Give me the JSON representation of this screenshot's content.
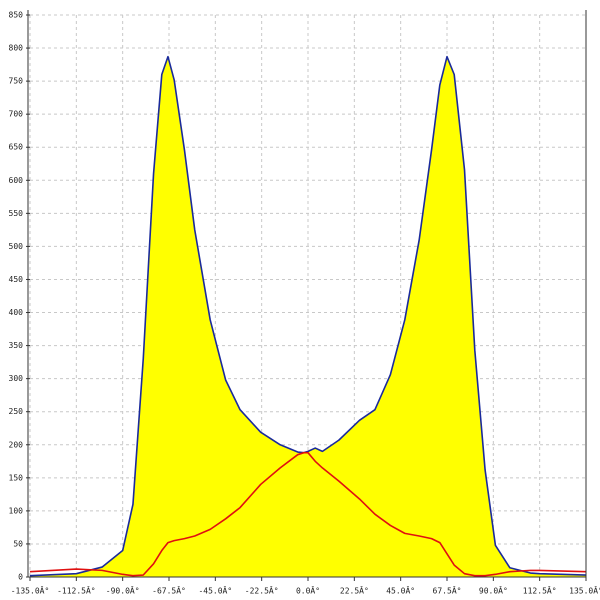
{
  "chart_data": {
    "type": "area",
    "x": [
      -135,
      -112.5,
      -100,
      -90,
      -85,
      -80,
      -75,
      -71,
      -68,
      -65,
      -60,
      -55,
      -47.5,
      -40,
      -33,
      -23,
      -13.5,
      -5,
      -2,
      0,
      3.5,
      7,
      15,
      25,
      32.5,
      40,
      47,
      54,
      60,
      64,
      67.5,
      71,
      76,
      81,
      86,
      91,
      98,
      108,
      112.5,
      135
    ],
    "series": [
      {
        "color": "#1a2a9c",
        "fill": "#ffff00",
        "values": [
          2,
          5,
          15,
          40,
          110,
          330,
          610,
          760,
          787,
          752,
          646,
          525,
          389,
          298,
          253,
          219,
          200,
          189,
          188,
          190,
          195,
          190,
          207,
          237,
          253,
          306,
          389,
          510,
          646,
          744,
          787,
          760,
          616,
          343,
          162,
          48,
          14,
          6,
          5,
          3
        ]
      },
      {
        "color": "#e01010",
        "values": [
          8,
          12,
          10,
          4,
          2,
          3,
          20,
          40,
          52,
          55,
          58,
          62,
          72,
          88,
          105,
          140,
          165,
          185,
          188,
          188,
          175,
          165,
          145,
          118,
          95,
          78,
          66,
          62,
          58,
          52,
          35,
          18,
          5,
          2,
          2,
          4,
          8,
          10,
          10,
          8
        ]
      }
    ],
    "xlim": [
      -135,
      135
    ],
    "xticks": [
      {
        "value": -135,
        "label": "-135.0Â°"
      },
      {
        "value": -112.5,
        "label": "-112.5Â°"
      },
      {
        "value": -90,
        "label": "-90.0Â°"
      },
      {
        "value": -67.5,
        "label": "-67.5Â°"
      },
      {
        "value": -45,
        "label": "-45.0Â°"
      },
      {
        "value": -22.5,
        "label": "-22.5Â°"
      },
      {
        "value": 0,
        "label": "0.0Â°"
      },
      {
        "value": 22.5,
        "label": "22.5Â°"
      },
      {
        "value": 45,
        "label": "45.0Â°"
      },
      {
        "value": 67.5,
        "label": "67.5Â°"
      },
      {
        "value": 90,
        "label": "90.0Â°"
      },
      {
        "value": 112.5,
        "label": "112.5Â°"
      },
      {
        "value": 135,
        "label": "135.0Â°"
      }
    ],
    "ylim": [
      0,
      850
    ],
    "yticks": [
      0,
      50,
      100,
      150,
      200,
      250,
      300,
      350,
      400,
      450,
      500,
      550,
      600,
      650,
      700,
      750,
      800,
      850
    ],
    "grid": true
  }
}
